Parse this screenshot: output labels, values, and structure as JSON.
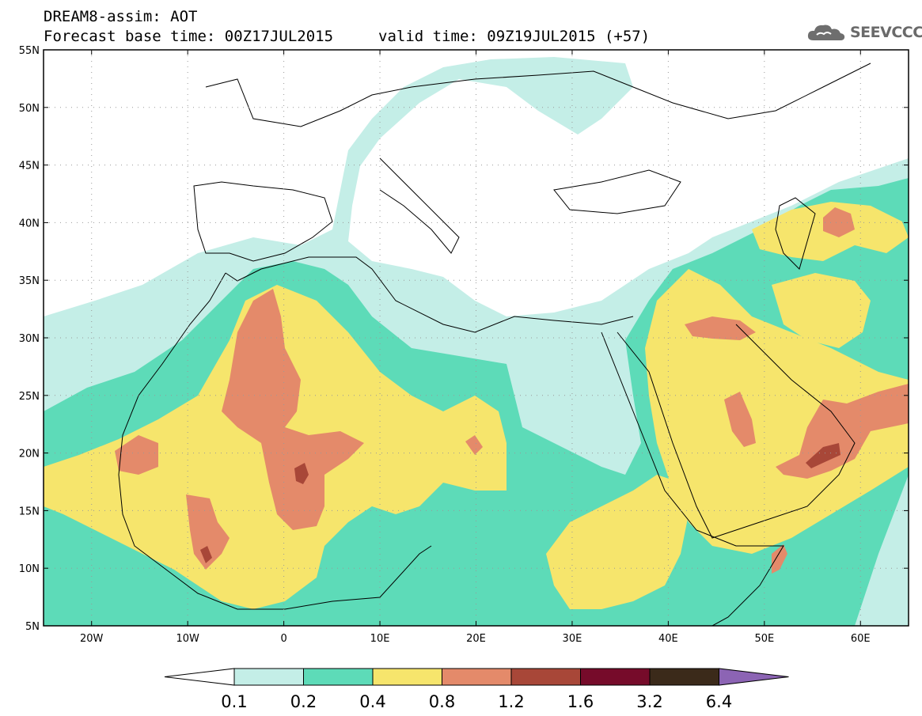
{
  "header": {
    "line1": "DREAM8-assim: AOT",
    "line2": "Forecast base time: 00Z17JUL2015",
    "line3": "valid time: 09Z19JUL2015 (+57)"
  },
  "logo": {
    "text": "SEEVCCC",
    "icon": "cloud-icon"
  },
  "map": {
    "projection": "lat-lon",
    "lon_range": [
      -25,
      65
    ],
    "lat_range": [
      5,
      55
    ],
    "lat_ticks": [
      "5N",
      "10N",
      "15N",
      "20N",
      "25N",
      "30N",
      "35N",
      "40N",
      "45N",
      "50N",
      "55N"
    ],
    "lon_ticks": [
      "20W",
      "10W",
      "0",
      "10E",
      "20E",
      "30E",
      "40E",
      "50E",
      "60E"
    ],
    "grid": "dotted",
    "field": "Aerosol Optical Thickness"
  },
  "colorbar": {
    "levels": [
      "0.1",
      "0.2",
      "0.4",
      "0.8",
      "1.2",
      "1.6",
      "3.2",
      "6.4"
    ],
    "colors": [
      "#ffffff",
      "#c4eee7",
      "#5ddbb8",
      "#f6e56c",
      "#e48a6a",
      "#a84738",
      "#760b2a",
      "#3b2a1a",
      "#8c64b4"
    ]
  }
}
